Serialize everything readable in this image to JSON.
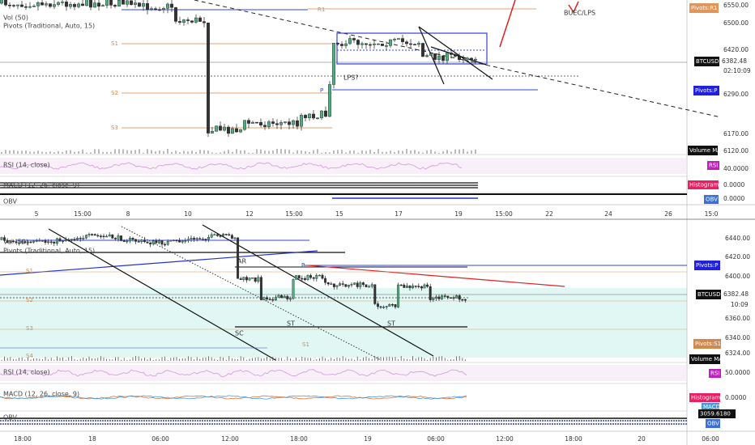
{
  "top": {
    "legend": [
      "Pivots (Traditional, Auto, 15)",
      "Vol (50)"
    ],
    "price_labels": [
      "6550.00",
      "6500.00",
      "6420.00",
      "6290.00",
      "6170.00",
      "6120.00"
    ],
    "badges": {
      "r1": "Pivots:R1",
      "symbol": "BTCUSD",
      "price": "6382.48",
      "countdown": "02:10:09",
      "pivot": "Pivots:P",
      "volume": "Volume MA"
    },
    "chart_labels": {
      "r1": "R1",
      "s1": "S1",
      "s2": "S2",
      "s3": "S3",
      "p": "P",
      "lps": "LPS?",
      "buec": "BUEC/LPS"
    },
    "rsi": {
      "label": "RSI (14, close)",
      "badge": "RSI",
      "value": "40.0000"
    },
    "macd": {
      "label": "MACD (12, 26, close, 9)",
      "badge": "Histogram",
      "value": "0.0000"
    },
    "obv": {
      "label": "OBV",
      "badge": "OBV",
      "value": "0.0000"
    },
    "time_labels": [
      "5",
      "15:00",
      "8",
      "10",
      "12",
      "15:00",
      "15",
      "17",
      "19",
      "15:00",
      "22",
      "24",
      "26",
      "15:0"
    ]
  },
  "bottom": {
    "legend": [
      "Vol (50)",
      "Pivots (Traditional, Auto, 15)"
    ],
    "price_labels": [
      "6440.00",
      "6420.00",
      "6400.00",
      "6360.00",
      "6340.00",
      "6324.00"
    ],
    "badges": {
      "pivot": "Pivots:P",
      "symbol": "BTCUSD",
      "price": "6382.48",
      "countdown": "10:09",
      "s1": "Pivots:S1",
      "volume": "Volume MA"
    },
    "chart_labels": {
      "ar": "AR",
      "p": "P",
      "s1": "S1",
      "s2": "S2",
      "s3": "S3",
      "s4": "S4",
      "sc": "SC",
      "st1": "ST",
      "st2": "ST",
      "s1b": "S1"
    },
    "rsi": {
      "label": "RSI (14, close)",
      "badge": "RSI",
      "value": "50.0000"
    },
    "macd": {
      "label": "MACD (12, 26, close, 9)",
      "badge": "Histogram",
      "badge2": "MACD",
      "value": "0.0000"
    },
    "obv": {
      "label": "OBV",
      "badge": "OBV",
      "value": "3059.6180"
    },
    "time_labels": [
      "18:00",
      "18",
      "06:00",
      "12:00",
      "18:00",
      "19",
      "06:00",
      "12:00",
      "18:00",
      "20",
      "06:00"
    ]
  }
}
